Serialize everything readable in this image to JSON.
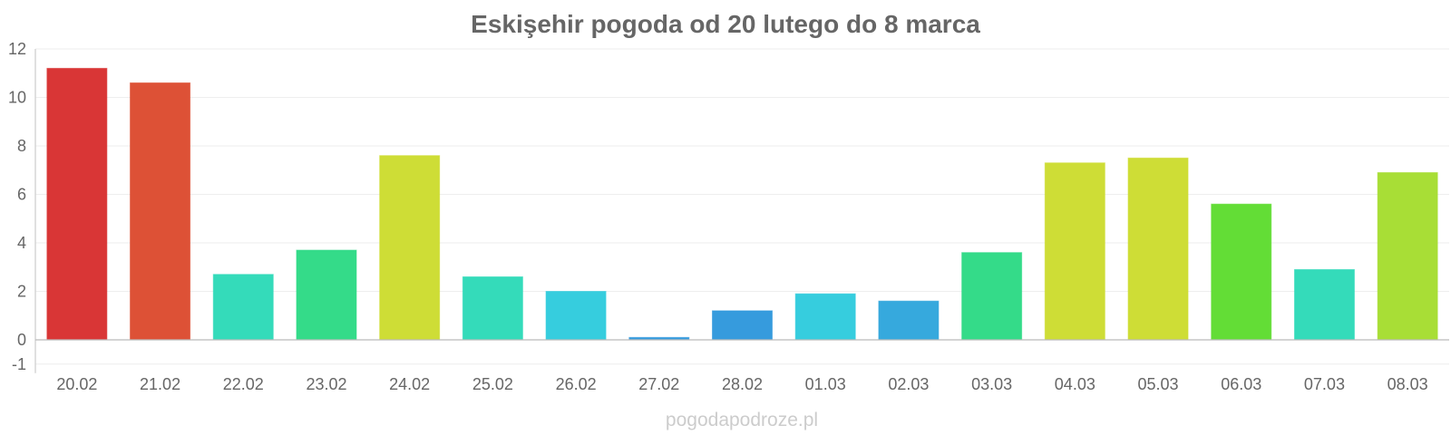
{
  "chart_data": {
    "type": "bar",
    "title": "Eskişehir pogoda od 20 lutego do 8 marca",
    "xlabel": "",
    "ylabel": "",
    "categories": [
      "20.02",
      "21.02",
      "22.02",
      "23.02",
      "24.02",
      "25.02",
      "26.02",
      "27.02",
      "28.02",
      "01.03",
      "02.03",
      "03.03",
      "04.03",
      "05.03",
      "06.03",
      "07.03",
      "08.03"
    ],
    "values": [
      11.2,
      10.6,
      2.7,
      3.7,
      7.6,
      2.6,
      2.0,
      0.1,
      1.2,
      1.9,
      1.6,
      3.6,
      7.3,
      7.5,
      5.6,
      2.9,
      6.9
    ],
    "colors": [
      "#d93636",
      "#dd5136",
      "#34dbba",
      "#34db89",
      "#cedd36",
      "#34dbba",
      "#36cdde",
      "#369bdd",
      "#369bdd",
      "#36cdde",
      "#36a9dd",
      "#34db89",
      "#cedd36",
      "#cedd36",
      "#63dd36",
      "#34dbba",
      "#a8de36"
    ],
    "ylim": [
      -1,
      12
    ],
    "yticks": [
      -1,
      0,
      2,
      4,
      6,
      8,
      10,
      12
    ],
    "grid": true,
    "legend": "none"
  },
  "watermark": "pogodapodroze.pl"
}
